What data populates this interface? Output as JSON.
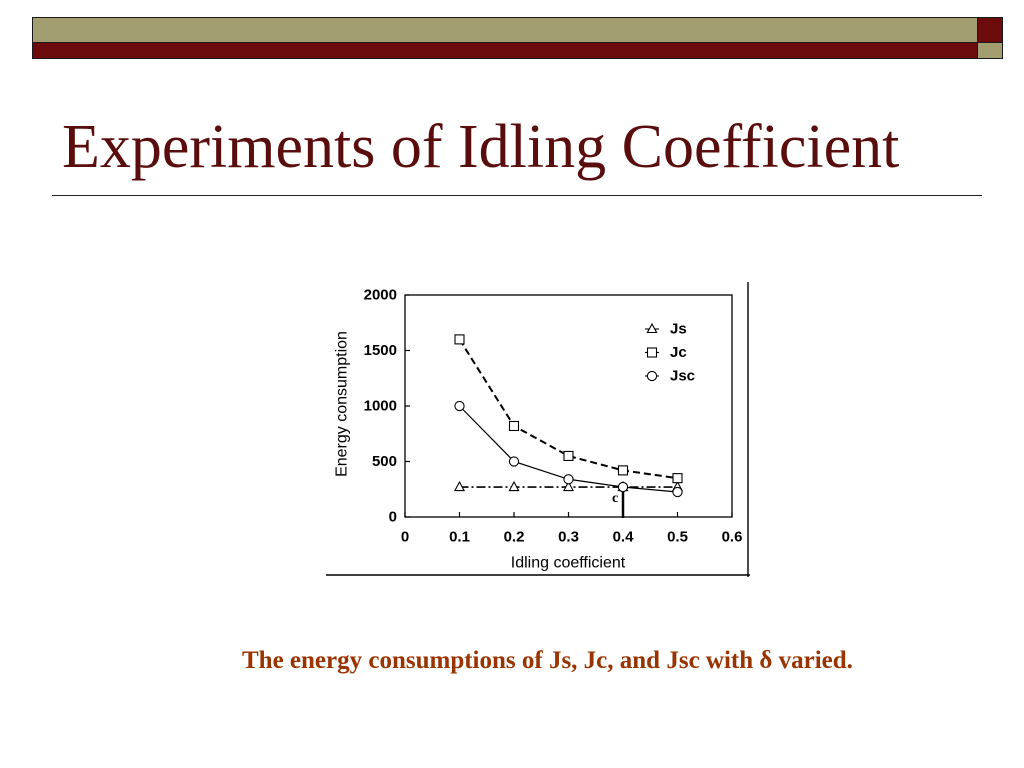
{
  "banner": {
    "colors": {
      "olive": "#a29e6f",
      "maroon": "#6b0b0b"
    }
  },
  "slide": {
    "title": "Experiments of Idling Coefficient",
    "caption": "The energy consumptions of Js, Jc, and Jsc with δ varied.",
    "colors": {
      "title": "#5a0d0d",
      "caption": "#993300",
      "rule": "#222222"
    }
  },
  "chart_data": {
    "type": "line",
    "xlabel": "Idling coefficient",
    "ylabel": "Energy consumption",
    "xlim": [
      0,
      0.6
    ],
    "ylim": [
      0,
      2000
    ],
    "xticks": [
      "0",
      "0.1",
      "0.2",
      "0.3",
      "0.4",
      "0.5",
      "0.6"
    ],
    "yticks": [
      "0",
      "500",
      "1000",
      "1500",
      "2000"
    ],
    "x": [
      0.1,
      0.2,
      0.3,
      0.4,
      0.5
    ],
    "series": [
      {
        "name": "Js",
        "marker": "triangle",
        "line": "dash-dot",
        "values": [
          270,
          270,
          270,
          270,
          270
        ]
      },
      {
        "name": "Jc",
        "marker": "square",
        "line": "dashed",
        "values": [
          1600,
          820,
          550,
          420,
          350
        ]
      },
      {
        "name": "Jsc",
        "marker": "circle",
        "line": "solid",
        "values": [
          1000,
          500,
          340,
          270,
          225
        ]
      }
    ],
    "annotation": {
      "label": "c",
      "x": 0.4,
      "y": 270
    },
    "legend": "top-right",
    "grid": false,
    "color": "#000000"
  }
}
